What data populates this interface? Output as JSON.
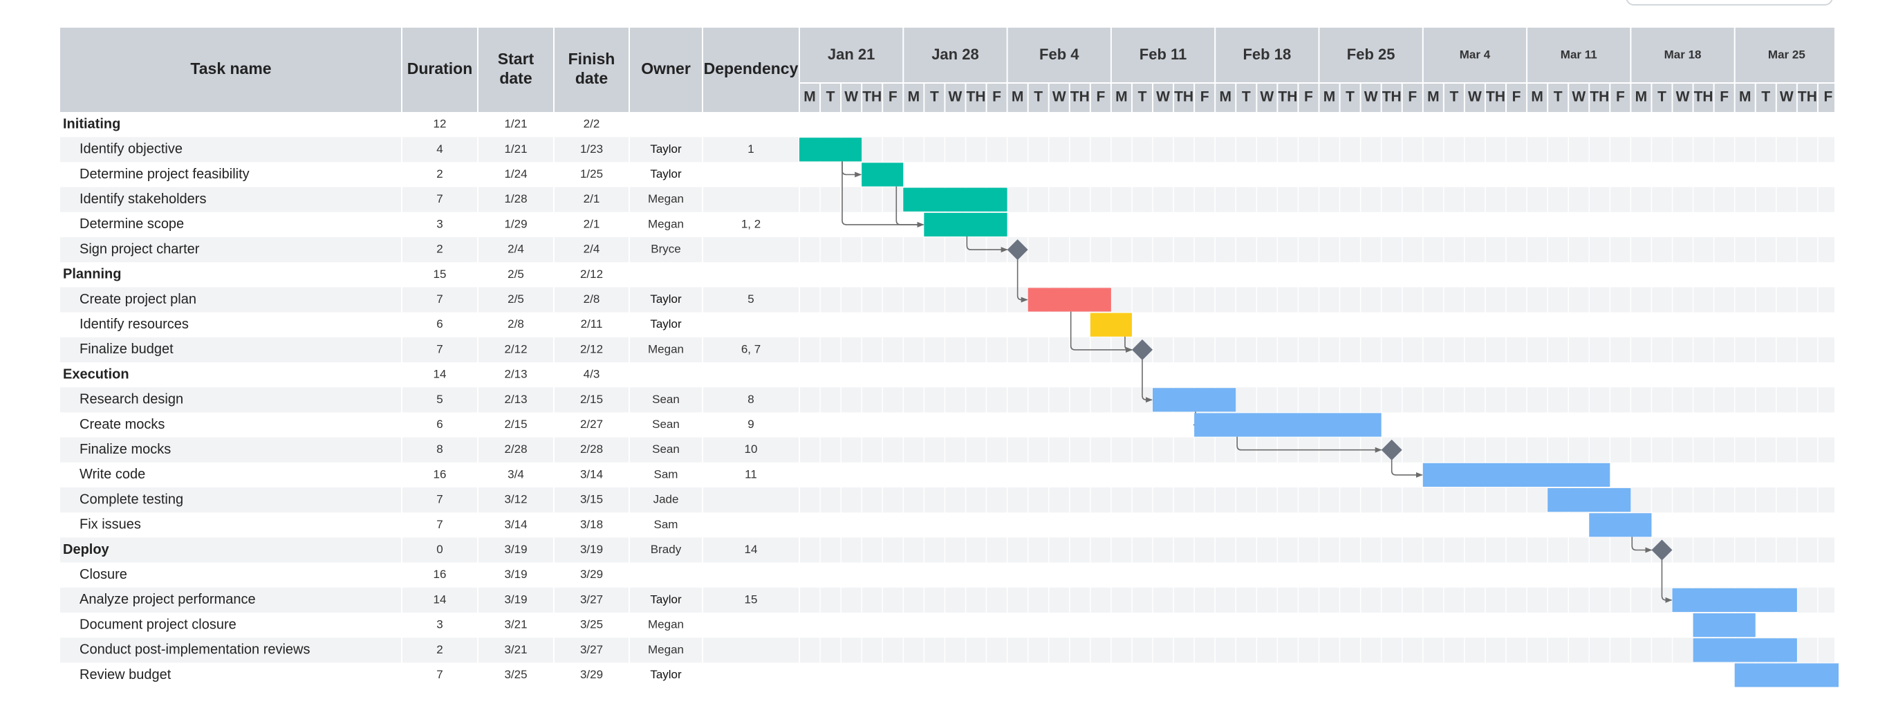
{
  "chart_data": {
    "type": "gantt",
    "columns": {
      "task": "Task name",
      "duration": "Duration",
      "start": [
        "Start",
        "date"
      ],
      "finish": [
        "Finish",
        "date"
      ],
      "owner": "Owner",
      "dependency": "Dependency"
    },
    "weeks": [
      "Jan 21",
      "Jan 28",
      "Feb 4",
      "Feb 11",
      "Feb 18",
      "Feb 25",
      "Mar 4",
      "Mar 11",
      "Mar 18",
      "Mar 25"
    ],
    "day_letters": [
      "M",
      "T",
      "W",
      "TH",
      "F"
    ],
    "rows": [
      {
        "name": "Initiating",
        "phase": true,
        "duration": "12",
        "start": "1/21",
        "finish": "2/2",
        "owner": "",
        "dependency": ""
      },
      {
        "name": "Identify objective",
        "duration": "4",
        "start": "1/21",
        "finish": "1/23",
        "owner": "Taylor",
        "dependency": "1",
        "bar": [
          0,
          3
        ],
        "color": "#00bfa5"
      },
      {
        "name": "Determine project feasibility",
        "duration": "2",
        "start": "1/24",
        "finish": "1/25",
        "owner": "Taylor",
        "dependency": "",
        "bar": [
          3,
          5
        ],
        "color": "#00bfa5"
      },
      {
        "name": "Identify stakeholders",
        "duration": "7",
        "start": "1/28",
        "finish": "2/1",
        "owner": "Megan",
        "dependency": "",
        "bar": [
          5,
          10
        ],
        "color": "#00bfa5"
      },
      {
        "name": "Determine scope",
        "duration": "3",
        "start": "1/29",
        "finish": "2/1",
        "owner": "Megan",
        "dependency": "1, 2",
        "bar": [
          6,
          10
        ],
        "color": "#00bfa5"
      },
      {
        "name": "Sign project charter",
        "duration": "2",
        "start": "2/4",
        "finish": "2/4",
        "owner": "Bryce",
        "dependency": "",
        "milestone": 10.5
      },
      {
        "name": "Planning",
        "phase": true,
        "duration": "15",
        "start": "2/5",
        "finish": "2/12",
        "owner": "",
        "dependency": ""
      },
      {
        "name": "Create project plan",
        "duration": "7",
        "start": "2/5",
        "finish": "2/8",
        "owner": "Taylor",
        "dependency": "5",
        "bar": [
          11,
          15
        ],
        "color": "#f87171"
      },
      {
        "name": "Identify resources",
        "duration": "6",
        "start": "2/8",
        "finish": "2/11",
        "owner": "Taylor",
        "dependency": "",
        "bar": [
          14,
          16
        ],
        "color": "#fccc1a"
      },
      {
        "name": "Finalize budget",
        "duration": "7",
        "start": "2/12",
        "finish": "2/12",
        "owner": "Megan",
        "dependency": "6, 7",
        "milestone": 16.5
      },
      {
        "name": "Execution",
        "phase": true,
        "duration": "14",
        "start": "2/13",
        "finish": "4/3",
        "owner": "",
        "dependency": ""
      },
      {
        "name": "Research design",
        "duration": "5",
        "start": "2/13",
        "finish": "2/15",
        "owner": "Sean",
        "dependency": "8",
        "bar": [
          17,
          21
        ],
        "color": "#74b3f5"
      },
      {
        "name": "Create mocks",
        "duration": "6",
        "start": "2/15",
        "finish": "2/27",
        "owner": "Sean",
        "dependency": "9",
        "bar": [
          19,
          28
        ],
        "color": "#74b3f5"
      },
      {
        "name": "Finalize mocks",
        "duration": "8",
        "start": "2/28",
        "finish": "2/28",
        "owner": "Sean",
        "dependency": "10",
        "milestone": 28.5
      },
      {
        "name": "Write code",
        "duration": "16",
        "start": "3/4",
        "finish": "3/14",
        "owner": "Sam",
        "dependency": "11",
        "bar": [
          30,
          39
        ],
        "color": "#74b3f5"
      },
      {
        "name": "Complete testing",
        "duration": "7",
        "start": "3/12",
        "finish": "3/15",
        "owner": "Jade",
        "dependency": "",
        "bar": [
          36,
          40
        ],
        "color": "#74b3f5"
      },
      {
        "name": "Fix issues",
        "duration": "7",
        "start": "3/14",
        "finish": "3/18",
        "owner": "Sam",
        "dependency": "",
        "bar": [
          38,
          41
        ],
        "color": "#74b3f5"
      },
      {
        "name": "Deploy",
        "phase": true,
        "duration": "0",
        "start": "3/19",
        "finish": "3/19",
        "owner": "Brady",
        "dependency": "14",
        "milestone": 41.5
      },
      {
        "name": "Closure",
        "duration": "16",
        "start": "3/19",
        "finish": "3/29",
        "owner": "",
        "dependency": ""
      },
      {
        "name": "Analyze project performance",
        "duration": "14",
        "start": "3/19",
        "finish": "3/27",
        "owner": "Taylor",
        "dependency": "15",
        "bar": [
          42,
          48
        ],
        "color": "#74b3f5"
      },
      {
        "name": "Document project closure",
        "duration": "3",
        "start": "3/21",
        "finish": "3/25",
        "owner": "Megan",
        "dependency": "",
        "bar": [
          43,
          46
        ],
        "color": "#74b3f5"
      },
      {
        "name": "Conduct post-implementation reviews",
        "duration": "2",
        "start": "3/21",
        "finish": "3/27",
        "owner": "Megan",
        "dependency": "",
        "bar": [
          43,
          48
        ],
        "color": "#74b3f5"
      },
      {
        "name": "Review budget",
        "duration": "7",
        "start": "3/25",
        "finish": "3/29",
        "owner": "Taylor",
        "dependency": "",
        "bar": [
          45,
          50
        ],
        "color": "#74b3f5"
      }
    ],
    "links": [
      [
        1,
        2
      ],
      [
        1,
        4
      ],
      [
        2,
        4
      ],
      [
        4,
        5
      ],
      [
        5,
        7
      ],
      [
        7,
        9
      ],
      [
        8,
        9
      ],
      [
        9,
        11
      ],
      [
        11,
        12
      ],
      [
        12,
        13
      ],
      [
        13,
        14
      ],
      [
        16,
        17
      ],
      [
        17,
        19
      ]
    ],
    "grid": true
  },
  "colors": {
    "header_bg": "#cdd2d9",
    "row_stripe": "#f2f3f5",
    "grid_line": "#ffffff",
    "milestone": "#6b7280",
    "connector": "#6b6b6b"
  }
}
